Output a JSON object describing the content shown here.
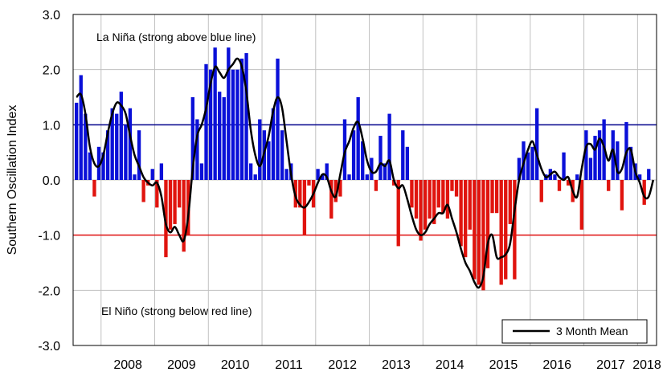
{
  "chart_data": {
    "type": "bar",
    "ylabel": "Southern Oscillation Index",
    "ylim": [
      -3.0,
      3.0
    ],
    "y_ticks": [
      "3.0",
      "2.0",
      "1.0",
      "0.0",
      "-1.0",
      "-2.0",
      "-3.0"
    ],
    "y_tick_values": [
      3,
      2,
      1,
      0,
      -1,
      -2,
      -3
    ],
    "x_ticks": [
      "2008",
      "2009",
      "2010",
      "2011",
      "2012",
      "2013",
      "2014",
      "2015",
      "2016",
      "2017",
      "2018"
    ],
    "x_start": "2007-07",
    "grid": true,
    "colors": {
      "positive": "#0a10d8",
      "negative": "#e0140e",
      "mean_line": "#000000",
      "upper_threshold": "#00008b",
      "lower_threshold": "#e01010",
      "grid": "#c0c0c0"
    },
    "thresholds": {
      "upper": 1.0,
      "lower": -1.0
    },
    "annotations": {
      "upper": "La Niña (strong above blue line)",
      "lower": "El Niño (strong below red line)"
    },
    "legend": {
      "position": "bottom-right",
      "label": "3 Month Mean"
    },
    "series": [
      {
        "values": [
          1.4,
          1.9,
          1.2,
          0.5,
          -0.3,
          0.6,
          0.5,
          0.9,
          1.3,
          1.2,
          1.6,
          1.0,
          1.3,
          0.1,
          0.9,
          -0.4,
          -0.1,
          0.2,
          -0.5,
          0.3,
          -1.4,
          -0.9,
          -0.8,
          -0.5,
          -1.3,
          -1.0,
          1.5,
          1.1,
          0.3,
          2.1,
          2.0,
          2.4,
          1.6,
          1.5,
          2.4,
          2.0,
          2.0,
          2.2,
          2.3,
          0.3,
          0.1,
          1.1,
          0.9,
          0.7,
          1.3,
          2.2,
          0.9,
          0.2,
          0.3,
          -0.5,
          -0.5,
          -1.0,
          -0.1,
          -0.5,
          0.2,
          0.1,
          0.3,
          -0.7,
          -0.4,
          -0.3,
          1.1,
          0.1,
          0.9,
          1.5,
          0.7,
          0.1,
          0.4,
          -0.2,
          0.8,
          0.3,
          1.2,
          -0.1,
          -1.2,
          0.9,
          0.6,
          -0.5,
          -0.7,
          -1.1,
          -0.9,
          -0.7,
          -0.8,
          -0.5,
          -0.6,
          -0.7,
          -0.2,
          -0.3,
          -1.2,
          -1.4,
          -0.9,
          -1.8,
          -1.9,
          -2.0,
          -1.6,
          -0.6,
          -0.6,
          -1.9,
          -1.8,
          -0.8,
          -1.8,
          0.4,
          0.7,
          0.5,
          0.6,
          1.3,
          -0.4,
          0.1,
          0.2,
          0.1,
          -0.2,
          0.5,
          -0.1,
          -0.4,
          0.1,
          -0.9,
          0.9,
          0.4,
          0.8,
          0.9,
          1.1,
          -0.2,
          0.9,
          0.7,
          -0.55,
          1.05,
          0.6,
          0.3,
          0.1,
          -0.45,
          0.2
        ]
      },
      {
        "name": "3 Month Mean",
        "values": [
          1.5,
          1.55,
          1.2,
          0.6,
          0.3,
          0.25,
          0.45,
          0.85,
          1.2,
          1.4,
          1.35,
          1.2,
          0.8,
          0.45,
          0.25,
          0.05,
          -0.05,
          -0.1,
          -0.05,
          -0.3,
          -0.8,
          -0.95,
          -0.85,
          -1.0,
          -1.1,
          -0.65,
          0.2,
          0.8,
          1.0,
          1.3,
          1.75,
          2.05,
          1.95,
          1.85,
          2.0,
          2.1,
          2.2,
          2.05,
          1.6,
          0.9,
          0.45,
          0.25,
          0.5,
          0.8,
          1.25,
          1.5,
          1.3,
          0.7,
          0.1,
          -0.3,
          -0.45,
          -0.5,
          -0.4,
          -0.25,
          -0.05,
          0.1,
          0.05,
          -0.2,
          -0.3,
          0.1,
          0.5,
          0.7,
          0.95,
          1.05,
          0.75,
          0.35,
          0.15,
          0.15,
          0.3,
          0.25,
          0.35,
          0.0,
          -0.15,
          -0.1,
          -0.35,
          -0.65,
          -0.9,
          -1.0,
          -0.95,
          -0.8,
          -0.7,
          -0.6,
          -0.6,
          -0.45,
          -0.7,
          -0.95,
          -1.25,
          -1.5,
          -1.65,
          -1.85,
          -1.95,
          -1.75,
          -1.15,
          -1.0,
          -1.4,
          -1.4,
          -1.35,
          -1.15,
          -0.55,
          0.0,
          0.3,
          0.55,
          0.7,
          0.45,
          0.2,
          0.05,
          0.1,
          0.15,
          0.05,
          0.0,
          0.05,
          -0.2,
          -0.3,
          0.2,
          0.6,
          0.65,
          0.55,
          0.75,
          0.6,
          0.35,
          0.55,
          0.15,
          0.2,
          0.5,
          0.55,
          0.15,
          -0.05,
          -0.3,
          -0.3,
          0.0
        ]
      }
    ]
  }
}
